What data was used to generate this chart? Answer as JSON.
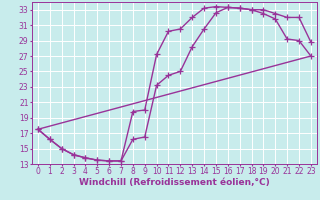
{
  "xlabel": "Windchill (Refroidissement éolien,°C)",
  "bg_color": "#c8ecec",
  "line_color": "#993399",
  "grid_color": "#ffffff",
  "xlim": [
    -0.5,
    23.5
  ],
  "ylim": [
    13,
    34
  ],
  "xticks": [
    0,
    1,
    2,
    3,
    4,
    5,
    6,
    7,
    8,
    9,
    10,
    11,
    12,
    13,
    14,
    15,
    16,
    17,
    18,
    19,
    20,
    21,
    22,
    23
  ],
  "yticks": [
    13,
    15,
    17,
    19,
    21,
    23,
    25,
    27,
    29,
    31,
    33
  ],
  "line1_x": [
    0,
    1,
    2,
    3,
    4,
    5,
    6,
    7,
    8,
    9,
    10,
    11,
    12,
    13,
    14,
    15,
    16,
    17,
    18,
    19,
    20,
    21,
    22,
    23
  ],
  "line1_y": [
    17.5,
    16.2,
    15.0,
    14.2,
    13.8,
    13.5,
    13.4,
    13.4,
    19.8,
    20.0,
    27.2,
    30.2,
    30.5,
    32.0,
    33.2,
    33.4,
    33.3,
    33.2,
    33.0,
    33.0,
    32.5,
    32.0,
    32.0,
    28.8
  ],
  "line2_x": [
    0,
    1,
    2,
    3,
    4,
    5,
    6,
    7,
    8,
    9,
    10,
    11,
    12,
    13,
    14,
    15,
    16,
    17,
    18,
    19,
    20,
    21,
    22,
    23
  ],
  "line2_y": [
    17.5,
    16.2,
    15.0,
    14.2,
    13.8,
    13.5,
    13.4,
    13.4,
    16.2,
    16.5,
    23.2,
    24.5,
    25.0,
    28.2,
    30.5,
    32.6,
    33.3,
    33.2,
    33.0,
    32.5,
    31.8,
    29.2,
    29.0,
    27.0
  ],
  "line3_x": [
    0,
    23
  ],
  "line3_y": [
    17.5,
    27.0
  ],
  "marker": "+",
  "marker_size": 4,
  "linewidth": 1.0,
  "xlabel_fontsize": 6.5,
  "tick_fontsize": 5.5
}
